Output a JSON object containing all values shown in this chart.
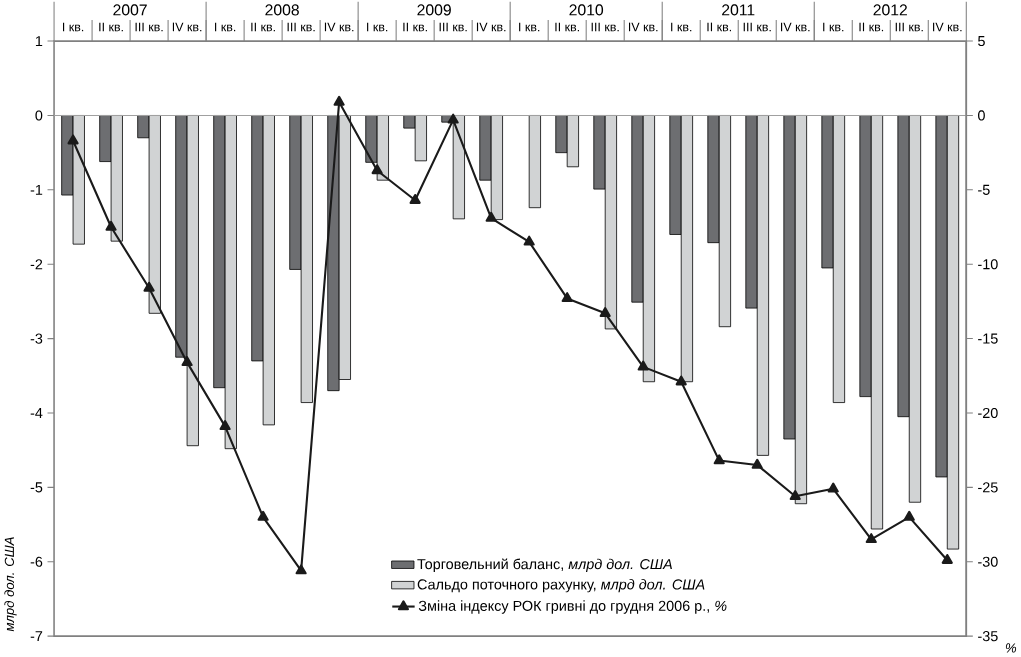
{
  "chart_data": {
    "type": "bar",
    "categories": [
      "I кв.",
      "II кв.",
      "III кв.",
      "IV кв.",
      "I кв.",
      "II кв.",
      "III кв.",
      "IV кв.",
      "I кв.",
      "II кв.",
      "III кв.",
      "IV кв.",
      "I кв.",
      "II кв.",
      "III кв.",
      "IV кв.",
      "I кв.",
      "II кв.",
      "III кв.",
      "IV кв.",
      "I кв.",
      "II кв.",
      "III кв.",
      "IV кв."
    ],
    "annotations": [
      "2007",
      "2008",
      "2009",
      "2010",
      "2011",
      "2012"
    ],
    "ylabel": "млрд дол. США",
    "y2label": "%",
    "ylim": [
      -7,
      1
    ],
    "yticks": [
      -7,
      -6,
      -5,
      -4,
      -3,
      -2,
      -1,
      0,
      1
    ],
    "y2lim": [
      -35,
      5
    ],
    "y2ticks": [
      -35,
      -30,
      -25,
      -20,
      -15,
      -10,
      -5,
      0,
      5
    ],
    "legend": "bottom right",
    "grid": false,
    "ref_lines": [
      {
        "axis": "y",
        "value": 0,
        "color": "#a0a0a0"
      }
    ],
    "series": [
      {
        "name": "Торговельний баланс, *млрд дол. США*",
        "color": "#6d6e71",
        "values": [
          -1.07,
          -0.62,
          -0.3,
          -3.25,
          -3.66,
          -3.3,
          -2.07,
          -3.7,
          -0.63,
          -0.17,
          -0.09,
          -0.87,
          null,
          -0.5,
          -0.99,
          -2.51,
          -1.6,
          -1.71,
          -2.59,
          -4.35,
          -2.05,
          -3.78,
          -4.05,
          -4.86
        ]
      },
      {
        "name": "Сальдо поточного рахунку, *млрд дол. США*",
        "color": "#d1d3d4",
        "values": [
          -1.73,
          -1.69,
          -2.66,
          -4.44,
          -4.48,
          -4.16,
          -3.86,
          -3.55,
          -0.87,
          -0.61,
          -1.39,
          -1.4,
          -1.24,
          -0.69,
          -2.87,
          -3.58,
          -3.58,
          -2.84,
          -4.57,
          -5.22,
          -3.86,
          -5.56,
          -5.2,
          -5.83
        ]
      },
      {
        "name": "Зміна індексу РОК гривні до грудня 2006 р., *%*",
        "type": "line",
        "axis": "y2",
        "color": "#1a1a1a",
        "marker": "triangle",
        "line_style": "solid",
        "values": [
          -1.7,
          -7.5,
          -11.6,
          -16.6,
          -20.9,
          -27.0,
          -30.6,
          0.9,
          -3.7,
          -5.7,
          -0.3,
          -6.9,
          -8.5,
          -12.3,
          -13.3,
          -16.9,
          -17.9,
          -23.2,
          -23.5,
          -25.6,
          -25.1,
          -28.5,
          -27.0,
          -29.9
        ]
      }
    ]
  }
}
